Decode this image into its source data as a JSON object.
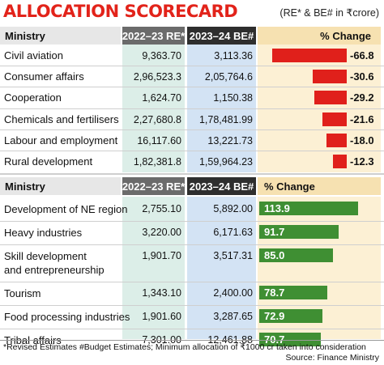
{
  "title": "ALLOCATION SCORECARD",
  "unit_note": "(RE* & BE# in ₹crore)",
  "headers": {
    "ministry": "Ministry",
    "re": "2022–23 RE*",
    "be": "2023–24 BE#",
    "pct": "% Change"
  },
  "footnote": "*Revised Estimates  #Budget Estimates; Minimum allocation of ₹1000 cr taken into consideration",
  "source": "Source: Finance Ministry",
  "colors": {
    "title": "#e2231a",
    "negative": "#e0201b",
    "positive": "#3f8f33"
  },
  "chart_data": [
    {
      "type": "table",
      "columns": [
        "Ministry",
        "2022–23 RE*",
        "2023–24 BE#",
        "% Change"
      ],
      "rows": [
        {
          "ministry": "Civil aviation",
          "re": "9,363.70",
          "be": "3,113.36",
          "pct": -66.8,
          "pct_label": "-66.8"
        },
        {
          "ministry": "Consumer affairs",
          "re": "2,96,523.3",
          "be": "2,05,764.6",
          "pct": -30.6,
          "pct_label": "-30.6"
        },
        {
          "ministry": "Cooperation",
          "re": "1,624.70",
          "be": "1,150.38",
          "pct": -29.2,
          "pct_label": "-29.2"
        },
        {
          "ministry": "Chemicals and fertilisers",
          "re": "2,27,680.8",
          "be": "1,78,481.99",
          "pct": -21.6,
          "pct_label": "-21.6"
        },
        {
          "ministry": "Labour and employment",
          "re": "16,117.60",
          "be": "13,221.73",
          "pct": -18.0,
          "pct_label": "-18.0"
        },
        {
          "ministry": "Rural development",
          "re": "1,82,381.8",
          "be": "1,59,964.23",
          "pct": -12.3,
          "pct_label": "-12.3"
        }
      ]
    },
    {
      "type": "table",
      "columns": [
        "Ministry",
        "2022–23 RE*",
        "2023–24 BE#",
        "% Change"
      ],
      "rows": [
        {
          "ministry": "Development of NE region",
          "re": "2,755.10",
          "be": "5,892.00",
          "pct": 113.9,
          "pct_label": "113.9"
        },
        {
          "ministry": "Heavy industries",
          "re": "3,220.00",
          "be": "6,171.63",
          "pct": 91.7,
          "pct_label": "91.7"
        },
        {
          "ministry": "Skill development\nand entrepreneurship",
          "re": "1,901.70",
          "be": "3,517.31",
          "pct": 85.0,
          "pct_label": "85.0"
        },
        {
          "ministry": "Tourism",
          "re": "1,343.10",
          "be": "2,400.00",
          "pct": 78.7,
          "pct_label": "78.7"
        },
        {
          "ministry": "Food processing industries",
          "re": "1,901.60",
          "be": "3,287.65",
          "pct": 72.9,
          "pct_label": "72.9"
        },
        {
          "ministry": "Tribal affairs",
          "re": "7,301.00",
          "be": "12,461.88",
          "pct": 70.7,
          "pct_label": "70.7"
        }
      ]
    }
  ]
}
